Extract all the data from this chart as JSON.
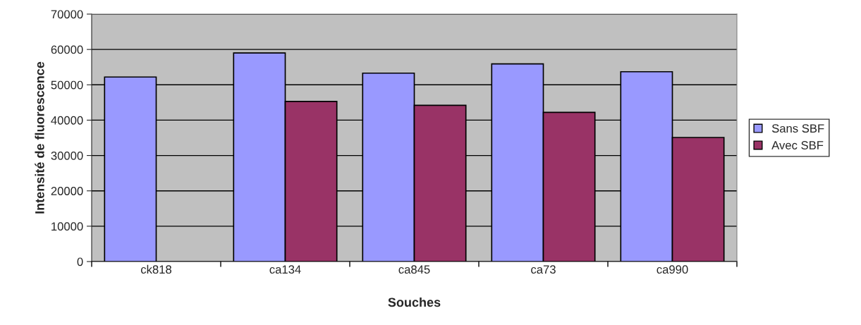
{
  "chart_data": {
    "type": "bar",
    "xlabel": "Souches",
    "ylabel": "Intensité de fluorescence",
    "categories": [
      "ck818",
      "ca134",
      "ca845",
      "ca73",
      "ca990"
    ],
    "series": [
      {
        "name": "Sans SBF",
        "color": "#9999ff",
        "values": [
          52200,
          59000,
          53300,
          55900,
          53700
        ]
      },
      {
        "name": "Avec SBF",
        "color": "#993366",
        "values": [
          null,
          45300,
          44200,
          42200,
          35100
        ]
      }
    ],
    "ylim": [
      0,
      70000
    ],
    "yticks": [
      0,
      10000,
      20000,
      30000,
      40000,
      50000,
      60000,
      70000
    ],
    "grid": "y",
    "legend": "right"
  }
}
